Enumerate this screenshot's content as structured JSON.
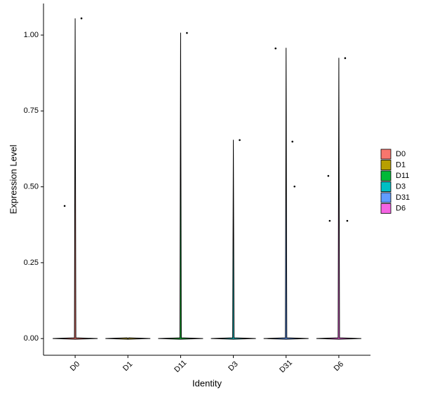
{
  "chart_data": {
    "type": "violin",
    "categories": [
      "D0",
      "D1",
      "D11",
      "D3",
      "D31",
      "D6"
    ],
    "colors": [
      "#F8766D",
      "#B79F00",
      "#00BA38",
      "#00BFC4",
      "#619CFF",
      "#F564E3"
    ],
    "max_values": [
      1.055,
      0,
      1.008,
      0.655,
      0.958,
      0.925
    ],
    "points": [
      [
        1.055,
        0.437
      ],
      [],
      [
        1.007
      ],
      [
        0.654
      ],
      [
        0.649,
        0.956,
        0.501
      ],
      [
        0.924,
        0.536,
        0.388,
        0.388
      ]
    ],
    "ylim": [
      -0.055,
      1.104
    ],
    "yticks": [
      {
        "value": 0,
        "label": "0.00"
      },
      {
        "value": 0.25,
        "label": "0.25"
      },
      {
        "value": 0.5,
        "label": "0.50"
      },
      {
        "value": 0.75,
        "label": "0.75"
      },
      {
        "value": 1,
        "label": "1.00"
      }
    ],
    "x_label": "Identity",
    "y_label": "Expression Level"
  }
}
